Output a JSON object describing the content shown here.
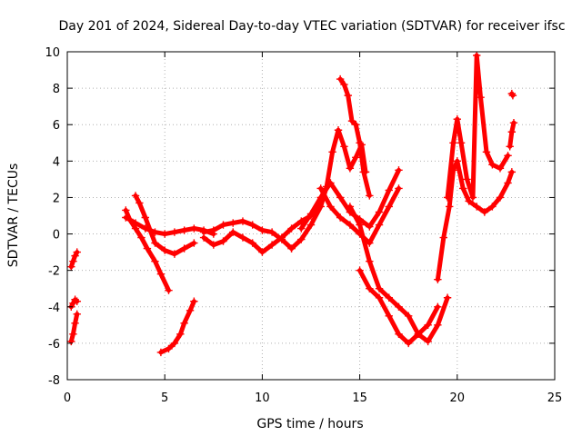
{
  "chart_data": {
    "type": "scatter",
    "title": "Day 201 of 2024, Sidereal Day-to-day VTEC variation (SDTVAR) for receiver ifsc",
    "xlabel": "GPS time / hours",
    "ylabel": "SDTVAR / TECUs",
    "xlim": [
      0,
      25
    ],
    "ylim": [
      -8,
      10
    ],
    "xticks": [
      0,
      5,
      10,
      15,
      20,
      25
    ],
    "yticks": [
      -8,
      -6,
      -4,
      -2,
      0,
      2,
      4,
      6,
      8,
      10
    ],
    "grid": true,
    "marker": "plus",
    "color": "#ff0000",
    "series": [
      {
        "x": [
          0.2,
          0.3,
          0.4,
          0.5
        ],
        "y": [
          -1.8,
          -1.5,
          -1.2,
          -1.0
        ]
      },
      {
        "x": [
          0.2,
          0.3,
          0.4,
          0.5
        ],
        "y": [
          -4.0,
          -3.8,
          -3.6,
          -3.7
        ]
      },
      {
        "x": [
          0.2,
          0.3,
          0.4,
          0.5
        ],
        "y": [
          -5.9,
          -5.5,
          -4.9,
          -4.4
        ]
      },
      {
        "x": [
          3.0,
          3.2,
          3.5,
          3.8,
          4.1,
          4.5,
          4.8,
          5.2
        ],
        "y": [
          1.3,
          0.8,
          0.3,
          -0.2,
          -0.8,
          -1.5,
          -2.2,
          -3.1
        ]
      },
      {
        "x": [
          3.5,
          3.7,
          4.0,
          4.5,
          5.0,
          5.5,
          6.0,
          6.5
        ],
        "y": [
          2.1,
          1.7,
          0.9,
          -0.5,
          -0.9,
          -1.1,
          -0.8,
          -0.5
        ]
      },
      {
        "x": [
          3.0,
          3.5,
          4.0,
          4.5,
          5.0,
          5.5,
          6.0,
          6.5,
          7.0,
          7.5
        ],
        "y": [
          0.9,
          0.6,
          0.3,
          0.1,
          0.0,
          0.1,
          0.2,
          0.3,
          0.2,
          0.0
        ]
      },
      {
        "x": [
          4.8,
          5.2,
          5.5,
          5.8,
          6.0,
          6.3,
          6.5
        ],
        "y": [
          -6.5,
          -6.3,
          -6.0,
          -5.5,
          -4.9,
          -4.2,
          -3.7
        ]
      },
      {
        "x": [
          7.0,
          7.5,
          8.0,
          8.5,
          9.0,
          9.5,
          10.0,
          10.5,
          11.0,
          11.5,
          12.0,
          12.5,
          13.0
        ],
        "y": [
          -0.2,
          -0.6,
          -0.4,
          0.1,
          -0.2,
          -0.5,
          -1.0,
          -0.6,
          -0.2,
          0.3,
          0.7,
          1.0,
          1.8
        ]
      },
      {
        "x": [
          7.0,
          7.5,
          8.0,
          8.5,
          9.0,
          9.5,
          10.0,
          10.5,
          11.0,
          11.5
        ],
        "y": [
          0.1,
          0.2,
          0.5,
          0.6,
          0.7,
          0.5,
          0.2,
          0.1,
          -0.3,
          -0.8
        ]
      },
      {
        "x": [
          11.5,
          12.0,
          12.5,
          13.0,
          13.3,
          13.6,
          13.9,
          14.2,
          14.5,
          14.8,
          15.1,
          15.3
        ],
        "y": [
          -0.8,
          -0.3,
          0.5,
          1.5,
          2.6,
          4.5,
          5.7,
          4.8,
          3.6,
          4.2,
          4.9,
          3.4
        ]
      },
      {
        "x": [
          12.0,
          12.5,
          13.0,
          13.5,
          14.0,
          14.5,
          15.0,
          15.5,
          16.0,
          16.5,
          17.0
        ],
        "y": [
          0.3,
          1.1,
          2.0,
          2.8,
          2.0,
          1.2,
          0.8,
          0.4,
          1.2,
          2.4,
          3.5
        ]
      },
      {
        "x": [
          13.0,
          13.5,
          14.0,
          14.5,
          15.0,
          15.5,
          16.0,
          16.5,
          17.0
        ],
        "y": [
          2.5,
          1.5,
          0.9,
          0.5,
          0.0,
          -0.5,
          0.5,
          1.5,
          2.5
        ]
      },
      {
        "x": [
          14.0,
          14.2,
          14.4,
          14.6,
          14.8,
          15.0,
          15.2,
          15.5
        ],
        "y": [
          8.5,
          8.2,
          7.6,
          6.2,
          6.0,
          5.0,
          3.4,
          2.1
        ]
      },
      {
        "x": [
          14.5,
          15.0,
          15.5,
          16.0,
          16.5,
          17.0,
          17.5,
          18.0,
          18.5,
          19.0,
          19.5
        ],
        "y": [
          1.5,
          0.5,
          -1.5,
          -3.0,
          -3.5,
          -4.0,
          -4.5,
          -5.5,
          -5.9,
          -5.0,
          -3.5
        ]
      },
      {
        "x": [
          15.0,
          15.5,
          16.0,
          16.5,
          17.0,
          17.5,
          18.0,
          18.5,
          19.0
        ],
        "y": [
          -2.0,
          -3.0,
          -3.5,
          -4.5,
          -5.5,
          -6.0,
          -5.5,
          -5.0,
          -4.0
        ]
      },
      {
        "x": [
          19.0,
          19.3,
          19.6,
          19.8,
          20.0,
          20.3,
          20.6,
          21.0,
          21.4,
          21.8,
          22.2,
          22.6,
          22.8
        ],
        "y": [
          -2.5,
          -0.2,
          1.5,
          3.5,
          4.0,
          2.5,
          1.8,
          1.5,
          1.2,
          1.5,
          2.0,
          2.8,
          3.4
        ]
      },
      {
        "x": [
          19.5,
          19.8,
          20.0,
          20.2,
          20.5,
          20.8,
          21.0,
          21.2,
          21.5,
          21.8,
          22.2,
          22.6
        ],
        "y": [
          2.0,
          5.0,
          6.3,
          5.0,
          3.0,
          2.0,
          9.8,
          7.5,
          4.5,
          3.8,
          3.6,
          4.3
        ]
      },
      {
        "x": [
          22.8,
          22.85
        ],
        "y": [
          7.7,
          7.6
        ]
      },
      {
        "x": [
          22.7,
          22.8,
          22.9
        ],
        "y": [
          4.8,
          5.6,
          6.1
        ]
      }
    ]
  }
}
